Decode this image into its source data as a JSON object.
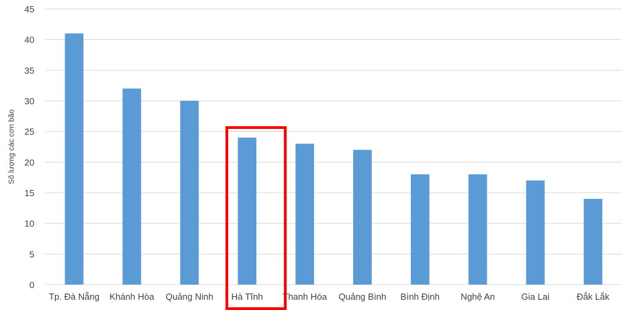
{
  "chart_data": {
    "type": "bar",
    "title": "",
    "xlabel": "",
    "ylabel": "Số lượng các cơn bão",
    "categories": [
      "Tp. Đà Nẵng",
      "Khánh Hòa",
      "Quảng Ninh",
      "Hà Tĩnh",
      "Thanh Hóa",
      "Quảng Bình",
      "Bình Định",
      "Nghệ An",
      "Gia Lai",
      "Đắk Lắk"
    ],
    "values": [
      41,
      32,
      30,
      24,
      23,
      22,
      18,
      18,
      17,
      14
    ],
    "ylim": [
      0,
      45
    ],
    "yticks": [
      0,
      5,
      10,
      15,
      20,
      25,
      30,
      35,
      40,
      45
    ],
    "grid": true,
    "bar_color": "#5b9bd5",
    "highlight": {
      "category": "Hà Tĩnh",
      "color": "#ff0000"
    }
  }
}
